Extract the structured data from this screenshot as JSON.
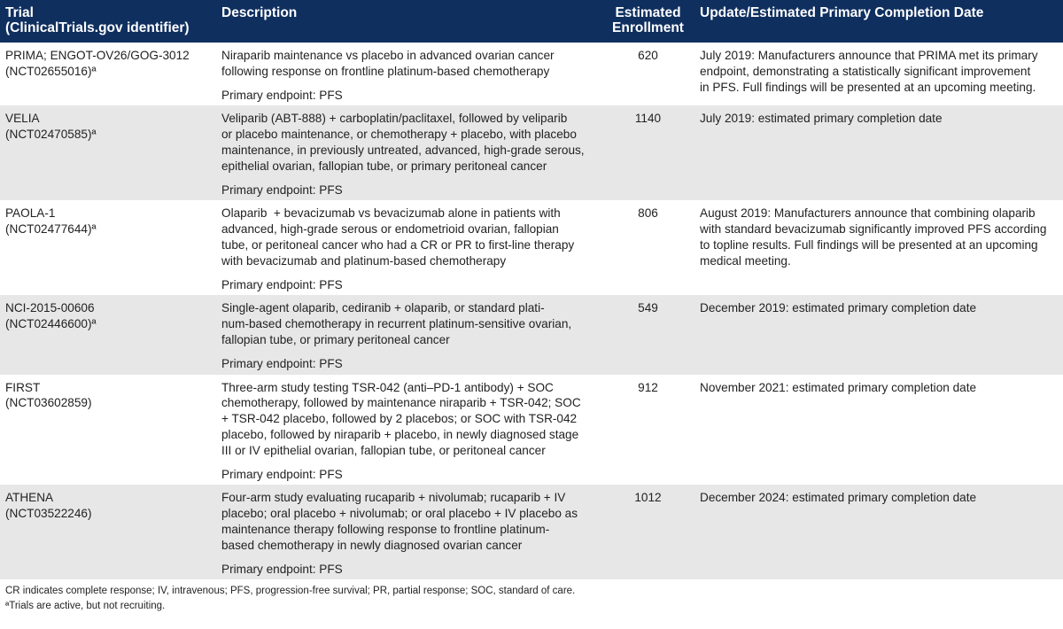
{
  "table": {
    "header": [
      [
        "Trial",
        "(ClinicalTrials.gov identifier)"
      ],
      [
        "Description"
      ],
      [
        "Estimated",
        "Enrollment"
      ],
      [
        "Update/Estimated Primary Completion Date"
      ]
    ],
    "rows": [
      {
        "trial": [
          "PRIMA; ENGOT-OV26/GOG-3012",
          "(NCT02655016)ª"
        ],
        "description": [
          "Niraparib maintenance vs placebo in advanced ovarian cancer",
          "following response on frontline platinum-based chemotherapy"
        ],
        "endpoint": "Primary endpoint: PFS",
        "enrollment": 620,
        "update": [
          "July 2019: Manufacturers announce that PRIMA met its primary",
          "endpoint, demonstrating a statistically significant improvement",
          "in PFS. Full findings will be presented at an upcoming meeting."
        ]
      },
      {
        "trial": [
          "VELIA",
          "(NCT02470585)ª"
        ],
        "description": [
          "Veliparib (ABT-888) + carboplatin/paclitaxel, followed by veliparib",
          "or placebo maintenance, or chemotherapy + placebo, with placebo",
          "maintenance, in previously untreated, advanced, high-grade serous,",
          "epithelial ovarian, fallopian tube, or primary peritoneal cancer"
        ],
        "endpoint": "Primary endpoint: PFS",
        "enrollment": 1140,
        "update": [
          "July 2019: estimated primary completion date"
        ]
      },
      {
        "trial": [
          "PAOLA-1",
          "(NCT02477644)ª"
        ],
        "description": [
          "Olaparib  + bevacizumab vs bevacizumab alone in patients with",
          "advanced, high-grade serous or endometrioid ovarian, fallopian",
          "tube, or peritoneal cancer who had a CR or PR to first-line therapy",
          "with bevacizumab and platinum-based chemotherapy"
        ],
        "endpoint": "Primary endpoint: PFS",
        "enrollment": 806,
        "update": [
          "August 2019: Manufacturers announce that combining olaparib",
          "with standard bevacizumab significantly improved PFS according",
          "to topline results. Full findings will be presented at an upcoming",
          "medical meeting."
        ]
      },
      {
        "trial": [
          "NCI-2015-00606",
          "(NCT02446600)ª"
        ],
        "description": [
          "Single-agent olaparib, cediranib + olaparib, or standard plati-",
          "num-based chemotherapy in recurrent platinum-sensitive ovarian,",
          "fallopian tube, or primary peritoneal cancer"
        ],
        "endpoint": "Primary endpoint: PFS",
        "enrollment": 549,
        "update": [
          "December 2019: estimated primary completion date"
        ]
      },
      {
        "trial": [
          "FIRST",
          "(NCT03602859)"
        ],
        "description": [
          "Three-arm study testing TSR-042 (anti–PD-1 antibody) + SOC",
          "chemotherapy, followed by maintenance niraparib + TSR-042; SOC",
          "+ TSR-042 placebo, followed by 2 placebos; or SOC with TSR-042",
          "placebo, followed by niraparib + placebo, in newly diagnosed stage",
          "III or IV epithelial ovarian, fallopian tube, or peritoneal cancer"
        ],
        "endpoint": "Primary endpoint: PFS",
        "enrollment": 912,
        "update": [
          "November 2021: estimated primary completion date"
        ]
      },
      {
        "trial": [
          "ATHENA",
          "(NCT03522246)"
        ],
        "description": [
          "Four-arm study evaluating rucaparib + nivolumab; rucaparib + IV",
          "placebo; oral placebo + nivolumab; or oral placebo + IV placebo as",
          "maintenance therapy following response to frontline platinum-",
          "based chemotherapy in newly diagnosed ovarian cancer"
        ],
        "endpoint": "Primary endpoint: PFS",
        "enrollment": 1012,
        "update": [
          "December 2024: estimated primary completion date"
        ]
      }
    ],
    "footnotes": [
      "CR indicates complete response; IV, intravenous; PFS, progression-free survival; PR, partial response; SOC, standard of care.",
      "ªTrials are active, but not recruiting."
    ]
  }
}
